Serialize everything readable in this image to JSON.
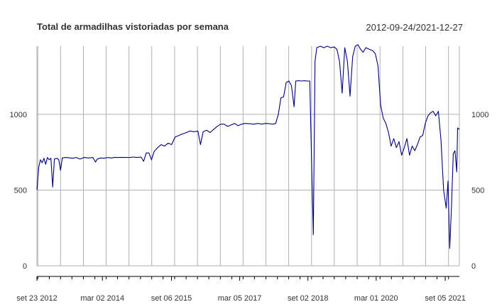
{
  "chart_data": {
    "type": "line",
    "title": "Total de armadilhas vistoriadas por semana",
    "date_range": "2012-09-24/2021-12-27",
    "x_range": [
      "2012-09-24",
      "2021-12-27"
    ],
    "ylim": [
      0,
      1450
    ],
    "y_ticks": [
      0,
      500,
      1000
    ],
    "x_ticks": [
      {
        "date": "2012-09-23",
        "label": "set 23 2012"
      },
      {
        "date": "2014-03-02",
        "label": "mar 02 2014"
      },
      {
        "date": "2015-09-06",
        "label": "set 06 2015"
      },
      {
        "date": "2017-03-05",
        "label": "mar 05 2017"
      },
      {
        "date": "2018-09-02",
        "label": "set 02 2018"
      },
      {
        "date": "2020-03-01",
        "label": "mar 01 2020"
      },
      {
        "date": "2021-09-05",
        "label": "set 05 2021"
      }
    ],
    "grid": true,
    "line_color": "#000080",
    "series": [
      {
        "points": [
          [
            "2012-09-24",
            500
          ],
          [
            "2012-10-08",
            650
          ],
          [
            "2012-10-22",
            700
          ],
          [
            "2012-11-05",
            680
          ],
          [
            "2012-11-19",
            710
          ],
          [
            "2012-12-03",
            670
          ],
          [
            "2012-12-17",
            715
          ],
          [
            "2012-12-31",
            700
          ],
          [
            "2013-01-14",
            710
          ],
          [
            "2013-01-28",
            520
          ],
          [
            "2013-02-11",
            705
          ],
          [
            "2013-03-04",
            710
          ],
          [
            "2013-03-18",
            700
          ],
          [
            "2013-04-01",
            630
          ],
          [
            "2013-04-15",
            712
          ],
          [
            "2013-05-13",
            715
          ],
          [
            "2013-07-08",
            710
          ],
          [
            "2013-08-05",
            715
          ],
          [
            "2013-09-02",
            705
          ],
          [
            "2013-10-07",
            715
          ],
          [
            "2013-11-11",
            712
          ],
          [
            "2013-12-16",
            715
          ],
          [
            "2014-01-06",
            685
          ],
          [
            "2014-01-20",
            705
          ],
          [
            "2014-02-17",
            712
          ],
          [
            "2014-03-17",
            710
          ],
          [
            "2014-04-14",
            715
          ],
          [
            "2014-05-12",
            712
          ],
          [
            "2014-06-09",
            716
          ],
          [
            "2014-07-07",
            715
          ],
          [
            "2014-08-04",
            716
          ],
          [
            "2014-09-01",
            715
          ],
          [
            "2014-10-06",
            715
          ],
          [
            "2014-11-03",
            718
          ],
          [
            "2014-12-01",
            715
          ],
          [
            "2015-01-05",
            718
          ],
          [
            "2015-01-26",
            690
          ],
          [
            "2015-02-16",
            745
          ],
          [
            "2015-03-09",
            745
          ],
          [
            "2015-03-30",
            700
          ],
          [
            "2015-04-20",
            755
          ],
          [
            "2015-05-18",
            780
          ],
          [
            "2015-06-15",
            800
          ],
          [
            "2015-07-13",
            790
          ],
          [
            "2015-08-10",
            810
          ],
          [
            "2015-09-07",
            800
          ],
          [
            "2015-10-05",
            850
          ],
          [
            "2015-11-02",
            860
          ],
          [
            "2015-11-30",
            870
          ],
          [
            "2016-01-04",
            880
          ],
          [
            "2016-02-01",
            890
          ],
          [
            "2016-03-07",
            885
          ],
          [
            "2016-04-04",
            890
          ],
          [
            "2016-04-25",
            800
          ],
          [
            "2016-05-16",
            885
          ],
          [
            "2016-06-13",
            895
          ],
          [
            "2016-07-11",
            880
          ],
          [
            "2016-08-08",
            900
          ],
          [
            "2016-09-05",
            920
          ],
          [
            "2016-10-03",
            935
          ],
          [
            "2016-10-31",
            935
          ],
          [
            "2016-11-28",
            920
          ],
          [
            "2016-12-26",
            930
          ],
          [
            "2017-01-23",
            940
          ],
          [
            "2017-02-20",
            925
          ],
          [
            "2017-03-20",
            935
          ],
          [
            "2017-04-17",
            940
          ],
          [
            "2017-05-22",
            938
          ],
          [
            "2017-06-26",
            935
          ],
          [
            "2017-07-31",
            940
          ],
          [
            "2017-08-28",
            935
          ],
          [
            "2017-09-25",
            940
          ],
          [
            "2017-10-30",
            938
          ],
          [
            "2017-11-27",
            935
          ],
          [
            "2017-12-18",
            940
          ],
          [
            "2018-01-08",
            1000
          ],
          [
            "2018-01-29",
            1110
          ],
          [
            "2018-02-19",
            1115
          ],
          [
            "2018-03-12",
            1210
          ],
          [
            "2018-04-02",
            1220
          ],
          [
            "2018-04-23",
            1190
          ],
          [
            "2018-05-14",
            1050
          ],
          [
            "2018-05-28",
            1220
          ],
          [
            "2018-06-18",
            1222
          ],
          [
            "2018-07-16",
            1220
          ],
          [
            "2018-08-06",
            1222
          ],
          [
            "2018-08-27",
            1220
          ],
          [
            "2018-09-17",
            1220
          ],
          [
            "2018-10-01",
            700
          ],
          [
            "2018-10-15",
            205
          ],
          [
            "2018-10-29",
            1350
          ],
          [
            "2018-11-12",
            1440
          ],
          [
            "2018-12-10",
            1450
          ],
          [
            "2019-01-07",
            1440
          ],
          [
            "2019-02-04",
            1450
          ],
          [
            "2019-03-04",
            1440
          ],
          [
            "2019-04-01",
            1445
          ],
          [
            "2019-04-22",
            1430
          ],
          [
            "2019-05-13",
            1350
          ],
          [
            "2019-06-03",
            1140
          ],
          [
            "2019-06-24",
            1440
          ],
          [
            "2019-07-15",
            1350
          ],
          [
            "2019-08-05",
            1120
          ],
          [
            "2019-08-26",
            1380
          ],
          [
            "2019-09-16",
            1450
          ],
          [
            "2019-10-07",
            1460
          ],
          [
            "2019-10-28",
            1430
          ],
          [
            "2019-11-18",
            1410
          ],
          [
            "2019-12-09",
            1440
          ],
          [
            "2020-01-06",
            1430
          ],
          [
            "2020-02-03",
            1420
          ],
          [
            "2020-02-24",
            1400
          ],
          [
            "2020-03-16",
            1320
          ],
          [
            "2020-04-06",
            1060
          ],
          [
            "2020-04-27",
            975
          ],
          [
            "2020-05-18",
            940
          ],
          [
            "2020-06-08",
            880
          ],
          [
            "2020-06-29",
            790
          ],
          [
            "2020-07-20",
            840
          ],
          [
            "2020-08-10",
            780
          ],
          [
            "2020-08-31",
            820
          ],
          [
            "2020-09-21",
            730
          ],
          [
            "2020-10-12",
            780
          ],
          [
            "2020-11-02",
            840
          ],
          [
            "2020-11-23",
            730
          ],
          [
            "2020-12-14",
            790
          ],
          [
            "2021-01-04",
            760
          ],
          [
            "2021-01-25",
            800
          ],
          [
            "2021-02-15",
            850
          ],
          [
            "2021-03-08",
            860
          ],
          [
            "2021-03-29",
            940
          ],
          [
            "2021-04-19",
            990
          ],
          [
            "2021-05-10",
            1010
          ],
          [
            "2021-05-31",
            1020
          ],
          [
            "2021-06-21",
            990
          ],
          [
            "2021-07-12",
            1020
          ],
          [
            "2021-08-02",
            830
          ],
          [
            "2021-08-23",
            500
          ],
          [
            "2021-09-13",
            380
          ],
          [
            "2021-09-27",
            560
          ],
          [
            "2021-10-11",
            115
          ],
          [
            "2021-10-25",
            390
          ],
          [
            "2021-11-08",
            740
          ],
          [
            "2021-11-22",
            760
          ],
          [
            "2021-12-06",
            620
          ],
          [
            "2021-12-13",
            910
          ],
          [
            "2021-12-27",
            900
          ]
        ]
      }
    ]
  }
}
